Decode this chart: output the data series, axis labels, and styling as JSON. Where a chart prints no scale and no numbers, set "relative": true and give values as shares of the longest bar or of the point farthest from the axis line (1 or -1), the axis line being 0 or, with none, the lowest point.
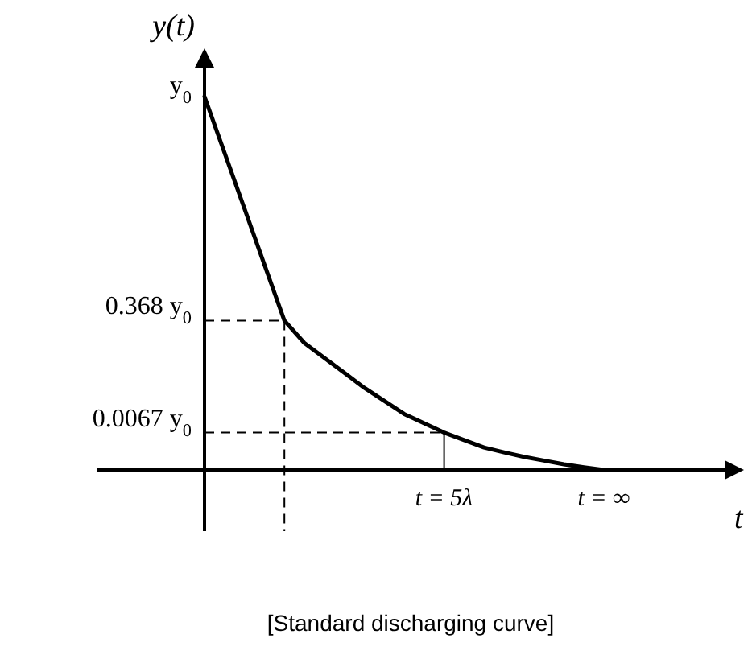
{
  "chart_data": {
    "type": "line",
    "relative": true,
    "ylabel": "y(t)",
    "xlabel": "t",
    "categories": [
      null,
      null,
      null,
      null,
      null,
      null,
      null,
      null,
      null,
      null,
      null,
      null,
      "t = 5λ",
      null,
      null,
      null,
      null,
      null,
      null,
      null,
      "t = ∞"
    ],
    "series": [
      {
        "color": "#000000",
        "line_style": "solid",
        "values": [
          1,
          0.85,
          0.7,
          0.55,
          0.4,
          0.34,
          0.3,
          0.26,
          0.22,
          0.185,
          0.15,
          0.125,
          0.1,
          0.08,
          0.06,
          0.047,
          0.035,
          0.025,
          0.015,
          0.007,
          0
        ]
      }
    ],
    "ref_lines": [
      {
        "axis": "y",
        "value": 0.4,
        "label": "0.368 y$_{0}$",
        "line_style": "dashed",
        "color": "#000000"
      },
      {
        "axis": "y",
        "value": 0.1,
        "label": "0.0067 y$_{0}$",
        "line_style": "dashed",
        "color": "#000000"
      },
      {
        "axis": "x",
        "value": "t = 5λ",
        "line_style": "solid",
        "color": "#000000"
      }
    ],
    "annotations": [
      "y$_{0}$",
      "[Standard discharging curve]"
    ]
  }
}
